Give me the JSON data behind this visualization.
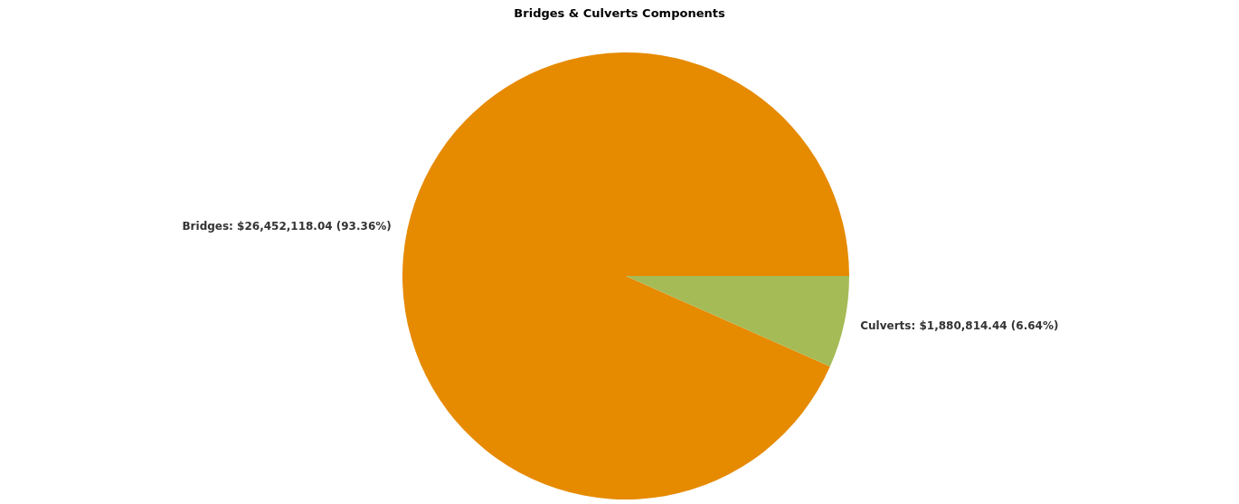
{
  "chart_data": {
    "type": "pie",
    "title": "Bridges & Culverts Components",
    "categories": [
      "Bridges",
      "Culverts"
    ],
    "values": [
      26452118.04,
      1880814.44
    ],
    "colors": [
      "#e68a00",
      "#a5bb56"
    ],
    "value_labels": [
      "$26,452,118.04 (93.36%)",
      "$1,880,814.44 (6.64%)"
    ],
    "legend": false
  }
}
